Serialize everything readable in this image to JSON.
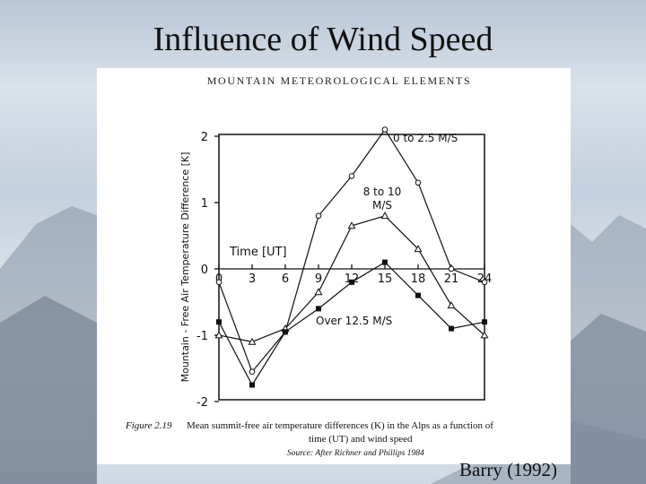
{
  "slide": {
    "title": "Influence of Wind Speed",
    "credit": "Barry (1992)"
  },
  "book": {
    "header": "MOUNTAIN METEOROLOGICAL ELEMENTS",
    "caption_fig": "Figure 2.19",
    "caption_line1": "Mean summit-free air temperature differences (K) in the Alps as a function of",
    "caption_line2": "time (UT) and wind speed",
    "source": "Source:  After Richner and Phillips 1984"
  },
  "chart_data": {
    "type": "line",
    "title": "",
    "xlabel": "Time [UT]",
    "ylabel": "Mountain - Free Air Temperature Difference [K]",
    "x": [
      0,
      3,
      6,
      9,
      12,
      15,
      18,
      21,
      24
    ],
    "x_tick_labels": [
      "0",
      "3",
      "6",
      "9",
      "12",
      "15",
      "18",
      "21",
      "24"
    ],
    "y_ticks": [
      2,
      1,
      0,
      -1,
      -2
    ],
    "y_tick_labels": [
      "2",
      "1",
      "0",
      "-1",
      "-2"
    ],
    "xlim": [
      0,
      24
    ],
    "ylim": [
      -2,
      2.2
    ],
    "grid": false,
    "series": [
      {
        "name": "0 to 2.5 M/S",
        "marker": "circle",
        "values": [
          -0.2,
          -1.55,
          -0.95,
          0.8,
          1.4,
          2.1,
          1.3,
          0.0,
          -0.2
        ]
      },
      {
        "name": "8 to 10 M/S",
        "marker": "triangle",
        "values": [
          -1.0,
          -1.1,
          -0.9,
          -0.35,
          0.65,
          0.8,
          0.3,
          -0.55,
          -1.0
        ]
      },
      {
        "name": "Over 12.5 M/S",
        "marker": "square",
        "values": [
          -0.8,
          -1.75,
          -0.95,
          -0.6,
          -0.2,
          0.1,
          -0.4,
          -0.9,
          -0.8
        ]
      }
    ]
  }
}
